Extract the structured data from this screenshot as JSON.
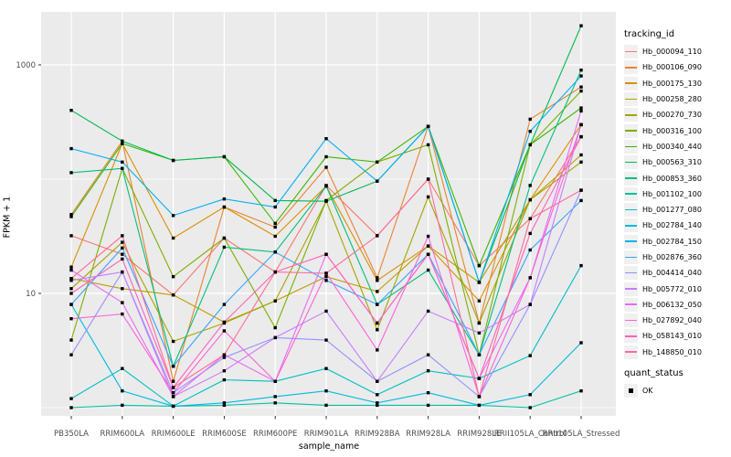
{
  "chart_data": {
    "type": "line",
    "title": "",
    "xlabel": "sample_name",
    "ylabel": "FPKM + 1",
    "y_scale": "log10",
    "y_axis": {
      "tick_values": [
        10,
        1000
      ],
      "tick_labels": [
        "10",
        "1000"
      ],
      "minor_grid_values": [
        1,
        100
      ],
      "ylim": [
        0.63,
        3500
      ]
    },
    "grid": "on",
    "panel_bg": "#EBEBEB",
    "grid_color": "#FFFFFF",
    "marker": "square",
    "marker_color": "#000000",
    "legend_position": "right",
    "categories": [
      "PB350LA",
      "RRIM600LA",
      "RRIM600LE",
      "RRIM600SE",
      "RRIM600PE",
      "RRIM901LA",
      "RRIM928BA",
      "RRIM928LA",
      "RRIM928LE",
      "RRII105LA_Control",
      "RRII105LA_Stressed"
    ],
    "series": [
      {
        "name": "Hb_000094_110",
        "color": "#F8766D",
        "values": [
          32,
          22,
          9.7,
          30.5,
          15.4,
          88,
          32,
          100,
          17.5,
          45,
          235
        ]
      },
      {
        "name": "Hb_000106_090",
        "color": "#EA8331",
        "values": [
          49,
          215,
          1.7,
          57,
          38,
          127,
          13.7,
          290,
          5.5,
          335,
          640
        ]
      },
      {
        "name": "Hb_000175_130",
        "color": "#D89000",
        "values": [
          17,
          205,
          30.5,
          57,
          31.6,
          87,
          13,
          26,
          8.6,
          66,
          300
        ]
      },
      {
        "name": "Hb_000258_280",
        "color": "#C09B00",
        "values": [
          13.5,
          11,
          9.7,
          5.6,
          8.6,
          14,
          10.4,
          26,
          12.5,
          66,
          163
        ]
      },
      {
        "name": "Hb_000270_730",
        "color": "#A3A500",
        "values": [
          11,
          28,
          3.8,
          5.5,
          8.6,
          64,
          4.8,
          70,
          5.5,
          66,
          141
        ]
      },
      {
        "name": "Hb_000316_100",
        "color": "#7CAE00",
        "values": [
          3.9,
          124,
          14,
          30.5,
          5,
          65,
          141,
          200,
          2.9,
          200,
          590
        ]
      },
      {
        "name": "Hb_000340_440",
        "color": "#39B600",
        "values": [
          47,
          205,
          146,
          157,
          41,
          157,
          141,
          290,
          17.5,
          200,
          420
        ]
      },
      {
        "name": "Hb_000563_310",
        "color": "#00BB4E",
        "values": [
          400,
          215,
          146,
          157,
          65,
          64,
          96,
          290,
          12.5,
          200,
          2200
        ]
      },
      {
        "name": "Hb_000853_360",
        "color": "#00BF7D",
        "values": [
          114,
          124,
          2.3,
          25.4,
          23,
          87,
          8,
          16,
          2.9,
          88,
          900
        ]
      },
      {
        "name": "Hb_001102_100",
        "color": "#00C1A3",
        "values": [
          1.0,
          1.05,
          1.03,
          1.05,
          1.1,
          1.05,
          1.05,
          1.05,
          1.05,
          1.0,
          1.4
        ]
      },
      {
        "name": "Hb_001277_080",
        "color": "#00BFC4",
        "values": [
          1.2,
          2.2,
          1.03,
          1.75,
          1.7,
          2.2,
          1.3,
          2.1,
          1.8,
          2.85,
          17.5
        ]
      },
      {
        "name": "Hb_002784_140",
        "color": "#00BAE0",
        "values": [
          8,
          1.4,
          1.03,
          1.1,
          1.25,
          1.4,
          1.1,
          1.35,
          1.05,
          1.3,
          3.7
        ]
      },
      {
        "name": "Hb_002784_150",
        "color": "#00B0F6",
        "values": [
          185,
          141,
          48,
          67,
          57,
          226,
          96,
          290,
          12.5,
          262,
          800
        ]
      },
      {
        "name": "Hb_002876_360",
        "color": "#35A2FF",
        "values": [
          8,
          25,
          2.3,
          8,
          23,
          13,
          8,
          22,
          2.9,
          24,
          65
        ]
      },
      {
        "name": "Hb_004414_040",
        "color": "#9590FF",
        "values": [
          2.9,
          15.4,
          1.35,
          2.75,
          4.1,
          3.9,
          1.7,
          2.9,
          1.25,
          8,
          80
        ]
      },
      {
        "name": "Hb_005772_010",
        "color": "#C77CFF",
        "values": [
          13,
          15.4,
          1.25,
          2.1,
          4.1,
          7,
          1.7,
          7,
          4.5,
          8,
          300
        ]
      },
      {
        "name": "Hb_006132_050",
        "color": "#E76BF3",
        "values": [
          16,
          8.3,
          1.25,
          2.9,
          1.7,
          22,
          5.5,
          22,
          1.8,
          13.7,
          395
        ]
      },
      {
        "name": "Hb_027892_040",
        "color": "#FA62DB",
        "values": [
          6,
          6.6,
          1.35,
          4.7,
          1.7,
          15,
          3.2,
          31.6,
          1.25,
          13.7,
          300
        ]
      },
      {
        "name": "Hb_058143_010",
        "color": "#FF62BC",
        "values": [
          10,
          20,
          1.5,
          5.6,
          15.4,
          22,
          5.5,
          22,
          1.8,
          33.5,
          235
        ]
      },
      {
        "name": "Hb_148850_010",
        "color": "#FF6A98",
        "values": [
          13.5,
          32,
          1.5,
          2.9,
          15.4,
          15,
          32,
          100,
          1.25,
          45,
          80
        ]
      }
    ],
    "legend": {
      "color_title": "tracking_id",
      "shape_title": "quant_status",
      "shape_items": [
        {
          "label": "OK"
        }
      ]
    }
  }
}
